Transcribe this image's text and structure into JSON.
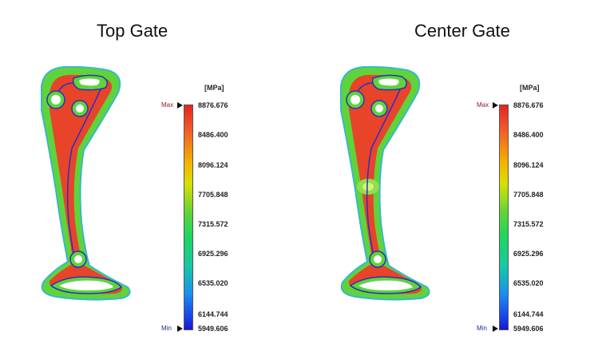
{
  "panels": [
    {
      "title": "Top Gate",
      "variant": "top"
    },
    {
      "title": "Center Gate",
      "variant": "center"
    }
  ],
  "legend": {
    "unit": "[MPa]",
    "max_label": "Max",
    "min_label": "Min",
    "ticks": [
      "8876.676",
      "8486.400",
      "8096.124",
      "7705.848",
      "7315.572",
      "6925.296",
      "6535.020",
      "6144.744",
      "5949.606"
    ],
    "max_value": 8876.676,
    "min_value": 5949.606
  },
  "colors": {
    "high": "#e8442a",
    "mid": "#f3b500",
    "low": "#5fd43a",
    "outline": "#2c2fc0",
    "max_label": "#8a1d2a",
    "min_label": "#1b2b8f"
  }
}
